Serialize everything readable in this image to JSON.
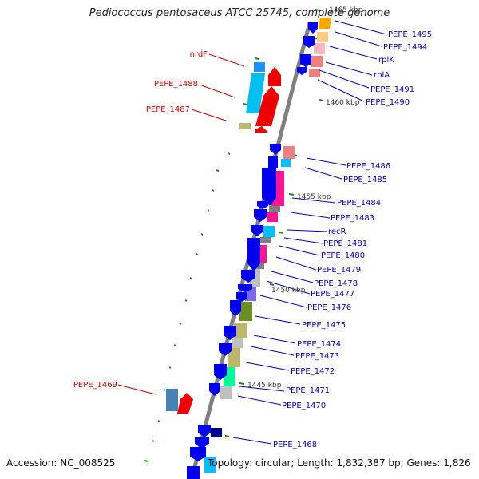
{
  "title": "Pediococcus pentosaceus ATCC 25745, complete genome",
  "footer": {
    "accession": "Accession: NC_008525",
    "topology": "Topology: circular; Length: 1,832,387 bp; Genes: 1,826"
  },
  "scale_labels": [
    "1465 kbp",
    "1460 kbp",
    "1455 kbp",
    "1450 kbp",
    "1445 kbp"
  ],
  "gene_labels_left": [
    "nrdF",
    "PEPE_1488",
    "PEPE_1487",
    "PEPE_1469"
  ],
  "gene_labels_right": [
    "PEPE_1495",
    "PEPE_1494",
    "rplK",
    "rplA",
    "PEPE_1491",
    "PEPE_1490",
    "PEPE_1486",
    "PEPE_1485",
    "PEPE_1484",
    "PEPE_1483",
    "recR",
    "PEPE_1481",
    "PEPE_1480",
    "PEPE_1479",
    "PEPE_1478",
    "PEPE_1477",
    "PEPE_1476",
    "PEPE_1475",
    "PEPE_1474",
    "PEPE_1473",
    "PEPE_1472",
    "PEPE_1471",
    "PEPE_1470",
    "PEPE_1468"
  ],
  "colors": {
    "backbone": "#808080",
    "forward_cds": "#0000ee",
    "reverse_cds": "#ee0000",
    "label_left": "#cc0000",
    "label_right": "#0000cc",
    "tick": "#1a8a1a"
  }
}
